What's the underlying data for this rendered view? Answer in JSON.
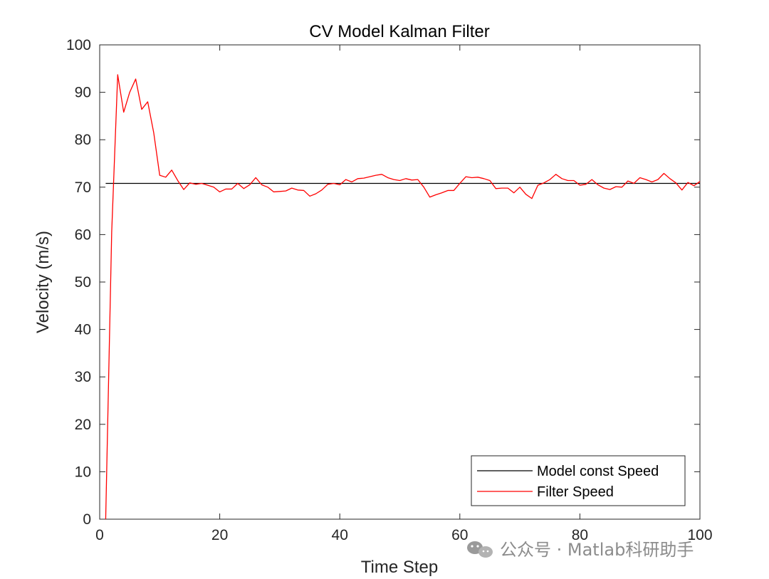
{
  "chart_data": {
    "type": "line",
    "title": "CV Model Kalman Filter",
    "xlabel": "Time Step",
    "ylabel": "Velocity (m/s)",
    "xlim": [
      0,
      100
    ],
    "ylim": [
      0,
      100
    ],
    "xticks": [
      0,
      20,
      40,
      60,
      80,
      100
    ],
    "yticks": [
      0,
      10,
      20,
      30,
      40,
      50,
      60,
      70,
      80,
      90,
      100
    ],
    "xtick_labels": [
      "0",
      "20",
      "40",
      "60",
      "80",
      "100"
    ],
    "ytick_labels": [
      "0",
      "10",
      "20",
      "30",
      "40",
      "50",
      "60",
      "70",
      "80",
      "90",
      "100"
    ],
    "grid": false,
    "legend_position": "bottom-right",
    "series": [
      {
        "name": "Model const Speed",
        "color": "#000000",
        "x": [
          1,
          100
        ],
        "y": [
          70.8,
          70.8
        ]
      },
      {
        "name": "Filter Speed",
        "color": "#ff0000",
        "x": [
          1,
          2,
          3,
          4,
          5,
          6,
          7,
          8,
          9,
          10,
          11,
          12,
          13,
          14,
          15,
          16,
          17,
          18,
          19,
          20,
          21,
          22,
          23,
          24,
          25,
          26,
          27,
          28,
          29,
          30,
          31,
          32,
          33,
          34,
          35,
          36,
          37,
          38,
          39,
          40,
          41,
          42,
          43,
          44,
          45,
          46,
          47,
          48,
          49,
          50,
          51,
          52,
          53,
          54,
          55,
          56,
          57,
          58,
          59,
          60,
          61,
          62,
          63,
          64,
          65,
          66,
          67,
          68,
          69,
          70,
          71,
          72,
          73,
          74,
          75,
          76,
          77,
          78,
          79,
          80,
          81,
          82,
          83,
          84,
          85,
          86,
          87,
          88,
          89,
          90,
          91,
          92,
          93,
          94,
          95,
          96,
          97,
          98,
          99,
          100
        ],
        "y": [
          0,
          60.5,
          93.7,
          85.8,
          90.0,
          92.8,
          86.4,
          88.0,
          81.5,
          72.5,
          72.1,
          73.6,
          71.4,
          69.5,
          70.9,
          70.6,
          70.8,
          70.4,
          70.0,
          69.0,
          69.6,
          69.6,
          70.8,
          69.7,
          70.5,
          72.0,
          70.5,
          70.0,
          69.0,
          69.1,
          69.2,
          69.8,
          69.4,
          69.3,
          68.1,
          68.6,
          69.4,
          70.6,
          70.8,
          70.5,
          71.6,
          71.1,
          71.8,
          71.9,
          72.2,
          72.5,
          72.7,
          72.0,
          71.6,
          71.4,
          71.8,
          71.5,
          71.6,
          70.0,
          67.9,
          68.4,
          68.8,
          69.3,
          69.3,
          70.8,
          72.2,
          72.0,
          72.1,
          71.8,
          71.4,
          69.7,
          69.8,
          69.8,
          68.8,
          70.0,
          68.5,
          67.6,
          70.4,
          70.9,
          71.6,
          72.7,
          71.8,
          71.4,
          71.4,
          70.4,
          70.6,
          71.6,
          70.5,
          69.8,
          69.5,
          70.1,
          70.0,
          71.3,
          70.8,
          72.0,
          71.6,
          71.1,
          71.6,
          72.9,
          71.8,
          70.9,
          69.4,
          71.0,
          70.3,
          71.2
        ]
      }
    ]
  },
  "watermark": {
    "text": "公众号 · Matlab科研助手",
    "icon": "wechat-icon"
  }
}
